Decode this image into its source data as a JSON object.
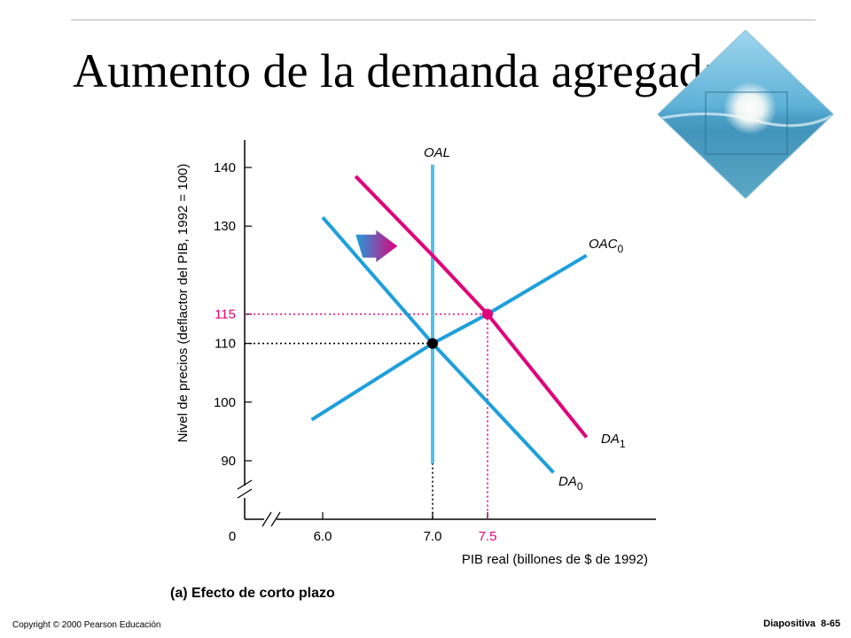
{
  "slide": {
    "title": "Aumento de la demanda agregada",
    "footer_copyright": "Copyright © 2000 Pearson Educación",
    "footer_slide_label": "Diapositiva",
    "footer_slide_number": "8-65",
    "decoration_icon": "beach-photo-diamond-icon"
  },
  "chart_data": {
    "type": "line",
    "caption": "(a) Efecto de corto plazo",
    "xlabel": "PIB real (billones de $ de 1992)",
    "ylabel": "Nivel de precios (deflactor del PIB, 1992 = 100)",
    "origin_label": "0",
    "xlim": [
      5.5,
      8.5
    ],
    "ylim": [
      90,
      140
    ],
    "axis_breaks": true,
    "grid": false,
    "x_ticks": [
      {
        "value": 6.0,
        "label": "6.0",
        "color": "#000000"
      },
      {
        "value": 7.0,
        "label": "7.0",
        "color": "#000000"
      },
      {
        "value": 7.5,
        "label": "7.5",
        "color": "#e0007a"
      }
    ],
    "y_ticks": [
      {
        "value": 90,
        "label": "90",
        "color": "#000000"
      },
      {
        "value": 100,
        "label": "100",
        "color": "#000000"
      },
      {
        "value": 110,
        "label": "110",
        "color": "#000000"
      },
      {
        "value": 115,
        "label": "115",
        "color": "#e0007a"
      },
      {
        "value": 130,
        "label": "130",
        "color": "#000000"
      },
      {
        "value": 140,
        "label": "140",
        "color": "#000000"
      }
    ],
    "series": [
      {
        "name": "OAL",
        "label": "OAL",
        "sub": "",
        "color": "#55bfe8",
        "width": 4,
        "x": [
          7.0,
          7.0
        ],
        "y": [
          140.5,
          89.5
        ]
      },
      {
        "name": "DA0",
        "label": "DA",
        "sub": "0",
        "color": "#1e9fdc",
        "width": 4,
        "x": [
          6.0,
          7.0,
          7.5,
          8.1
        ],
        "y": [
          131.5,
          110,
          100,
          88
        ]
      },
      {
        "name": "DA1",
        "label": "DA",
        "sub": "1",
        "color": "#e0007a",
        "width": 4,
        "x": [
          6.3,
          7.0,
          7.5,
          8.4
        ],
        "y": [
          138.5,
          125,
          115,
          94
        ]
      },
      {
        "name": "OAC0",
        "label": "OAC",
        "sub": "0",
        "color": "#1e9fdc",
        "width": 4,
        "x": [
          5.9,
          7.0,
          7.5,
          8.4
        ],
        "y": [
          97,
          110,
          115,
          125
        ]
      }
    ],
    "equilibria": [
      {
        "x": 7.0,
        "y": 110,
        "color": "#000000"
      },
      {
        "x": 7.5,
        "y": 115,
        "color": "#e0007a"
      }
    ],
    "guides": [
      {
        "x": 7.0,
        "y": 110,
        "color": "#000000"
      },
      {
        "x": 7.5,
        "y": 115,
        "color": "#e0007a"
      }
    ],
    "shift_arrow": {
      "from_x": 6.3,
      "to_x": 6.68,
      "y": 126.6,
      "from_color": "#1e9fdc",
      "to_color": "#e0007a"
    }
  }
}
